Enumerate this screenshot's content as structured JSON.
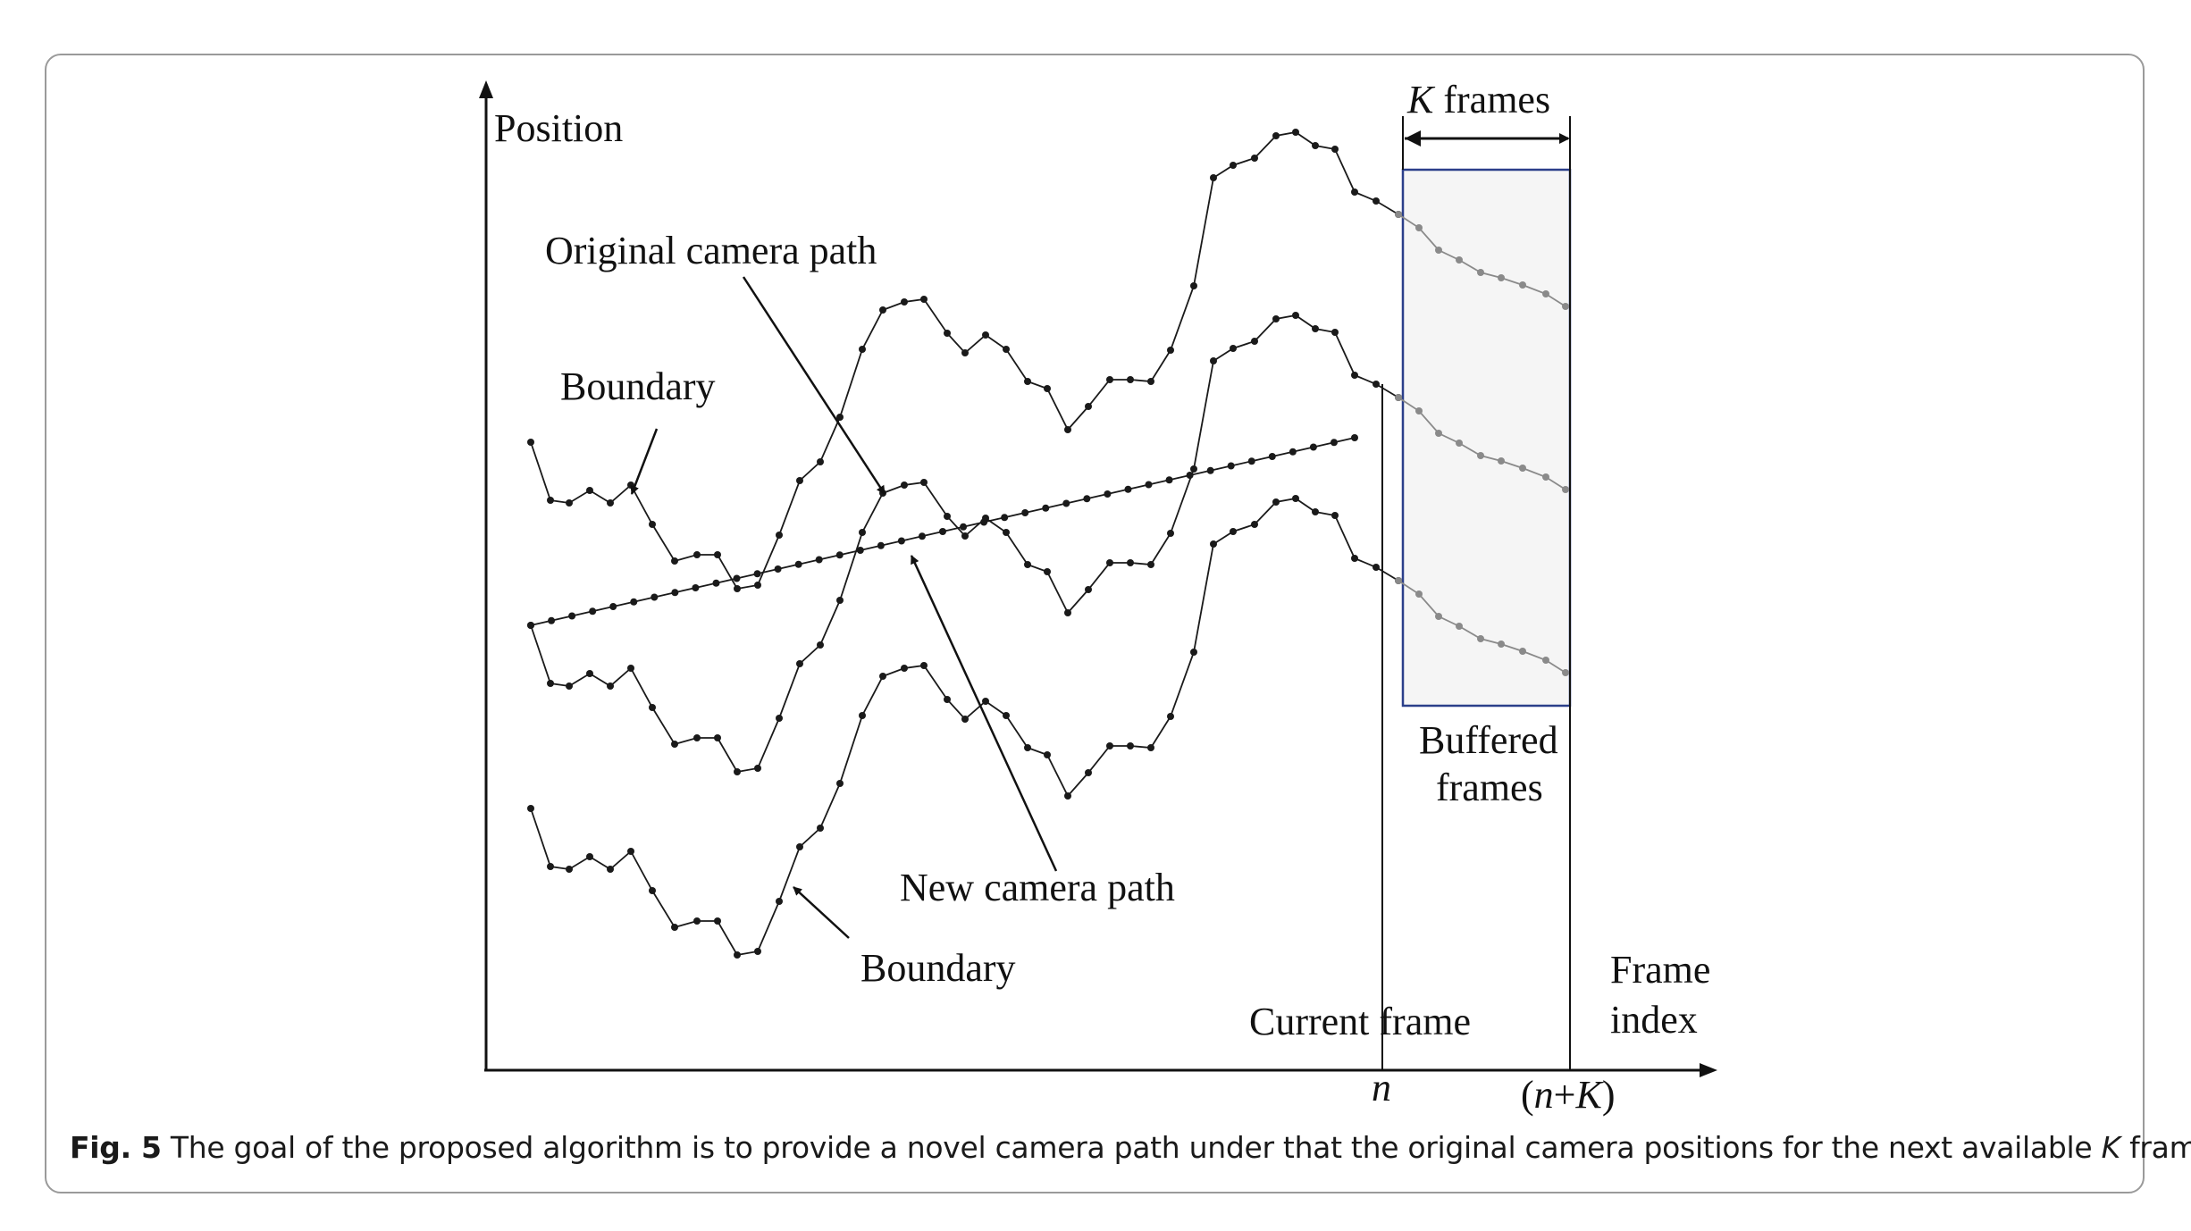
{
  "diagram": {
    "axis_y_label": "Position",
    "axis_x_label_line1": "Frame",
    "axis_x_label_line2": "index",
    "label_original_path": "Original camera path",
    "label_new_path": "New camera path",
    "label_boundary_top": "Boundary",
    "label_boundary_bottom": "Boundary",
    "label_k_frames_var": "K",
    "label_k_frames_text": " frames",
    "label_buffered_line1": "Buffered",
    "label_buffered_line2": "frames",
    "label_current_frame": "Current frame",
    "tick_n": "n",
    "tick_nk_open": "(",
    "tick_nk_n": "n",
    "tick_nk_plus": "+",
    "tick_nk_k": "K",
    "tick_nk_close": ")"
  },
  "caption": {
    "fig_label": "Fig. 5",
    "text_before_k": " The goal of the proposed algorithm is to provide a novel camera path under that the original camera positions for the next available ",
    "k": "K",
    "text_after_k": " frames"
  },
  "colors": {
    "path": "#1a1a1a",
    "buffered_path": "#8a8a8a",
    "buffer_box_border": "#2b3f8a",
    "buffer_box_fill": "#f5f5f5"
  }
}
